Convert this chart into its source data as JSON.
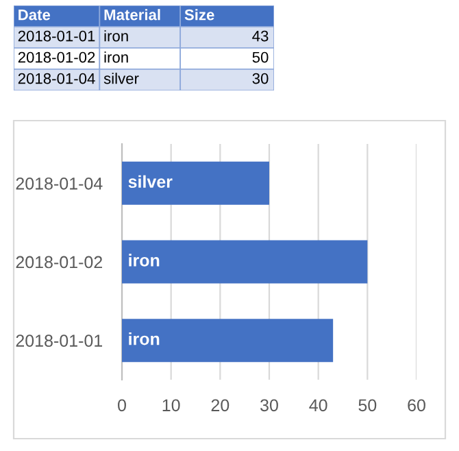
{
  "chart_data": [
    {
      "type": "other",
      "annotations": [
        "Date",
        "Material",
        "Size",
        "2018-01-01",
        "iron",
        "43",
        "2018-01-02",
        "iron",
        "50",
        "2018-01-04",
        "silver",
        "30"
      ]
    },
    {
      "type": "bar",
      "orientation": "horizontal",
      "categories": [
        "2018-01-04",
        "2018-01-02",
        "2018-01-01"
      ],
      "values": [
        30,
        50,
        43
      ],
      "color": "#4472c4",
      "xlim": [
        0,
        60
      ],
      "xticks": [
        0,
        10,
        20,
        30,
        40,
        50,
        60
      ],
      "grid": "x",
      "value_labels": [
        "silver",
        "iron",
        "iron"
      ]
    }
  ]
}
